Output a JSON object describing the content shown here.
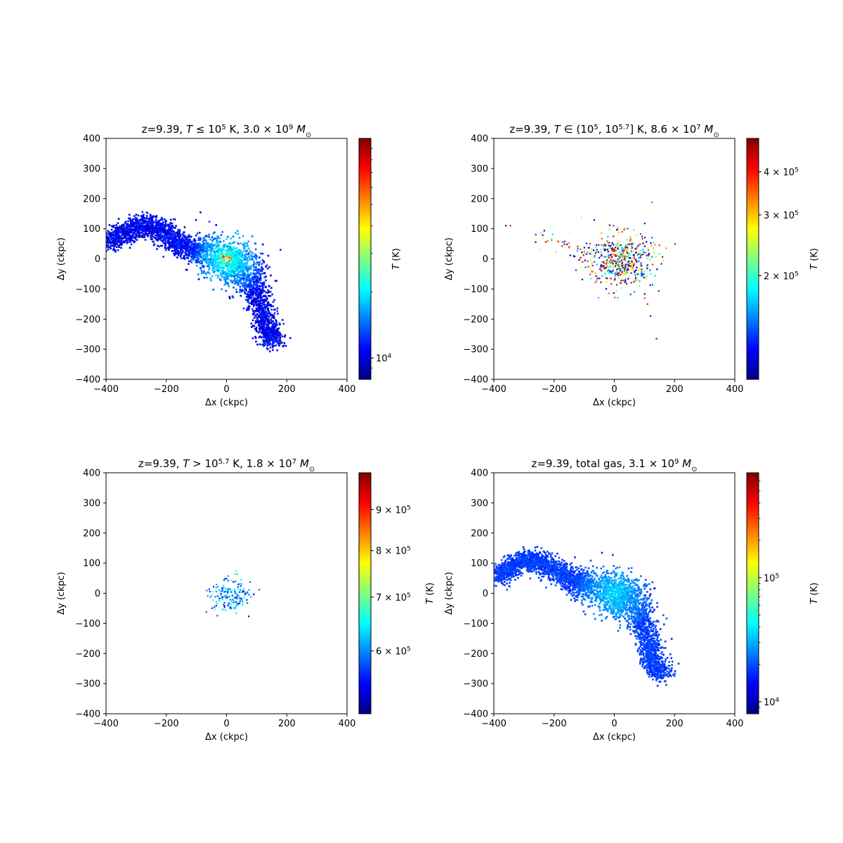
{
  "colormap": "jet",
  "colormap_stops": [
    "#00007f",
    "#0000ff",
    "#007fff",
    "#00ffff",
    "#7fff7f",
    "#ffff00",
    "#ff7f00",
    "#ff0000",
    "#7f0000"
  ],
  "chart_data": [
    {
      "type": "heatmap",
      "title_parts": [
        "z=9.39, ",
        "T",
        " ≤ 10",
        "5",
        " K, 3.0 × 10",
        "9",
        " M",
        "⊙"
      ],
      "xlabel": "Δx (ckpc)",
      "ylabel": "Δy (ckpc)",
      "xlim": [
        -400,
        400
      ],
      "ylim": [
        -400,
        400
      ],
      "xticks": [
        -400,
        -200,
        0,
        200,
        400
      ],
      "yticks": [
        400,
        300,
        200,
        100,
        0,
        -100,
        -200,
        -300,
        -400
      ],
      "colorbar": {
        "label": "T (K)",
        "scale": "log",
        "range": [
          8000,
          100000
        ],
        "ticks": [
          {
            "value": 10000,
            "base": "10",
            "exp": "4",
            "mantissa": ""
          }
        ]
      },
      "morphology": "filament",
      "temp_range": [
        0.05,
        0.45
      ],
      "point_density": 1.0
    },
    {
      "type": "heatmap",
      "title_parts": [
        "z=9.39, ",
        "T",
        " ∈ (10",
        "5",
        ", 10",
        "5.7",
        "] K, 8.6 × 10",
        "7",
        " M",
        "⊙"
      ],
      "xlabel": "Δx (ckpc)",
      "ylabel": "Δy (ckpc)",
      "xlim": [
        -400,
        400
      ],
      "ylim": [
        -400,
        400
      ],
      "xticks": [
        -400,
        -200,
        0,
        200,
        400
      ],
      "yticks": [
        400,
        300,
        200,
        100,
        0,
        -100,
        -200,
        -300,
        -400
      ],
      "colorbar": {
        "label": "T (K)",
        "scale": "log",
        "range": [
          100000,
          500000
        ],
        "ticks": [
          {
            "value": 200000,
            "mantissa": "2 × ",
            "base": "10",
            "exp": "5"
          },
          {
            "value": 300000,
            "mantissa": "3 × ",
            "base": "10",
            "exp": "5"
          },
          {
            "value": 400000,
            "mantissa": "4 × ",
            "base": "10",
            "exp": "5"
          }
        ]
      },
      "morphology": "sparse",
      "temp_range": [
        0.0,
        1.0
      ],
      "point_density": 1.0
    },
    {
      "type": "heatmap",
      "title_parts": [
        "z=9.39, ",
        "T",
        " > 10",
        "5.7",
        " K, 1.8 × 10",
        "7",
        " M",
        "⊙"
      ],
      "xlabel": "Δx (ckpc)",
      "ylabel": "Δy (ckpc)",
      "xlim": [
        -400,
        400
      ],
      "ylim": [
        -400,
        400
      ],
      "xticks": [
        -400,
        -200,
        0,
        200,
        400
      ],
      "yticks": [
        400,
        300,
        200,
        100,
        0,
        -100,
        -200,
        -300,
        -400
      ],
      "colorbar": {
        "label": "T (K)",
        "scale": "log",
        "range": [
          501000,
          1000000
        ],
        "ticks": [
          {
            "value": 600000,
            "mantissa": "6 × ",
            "base": "10",
            "exp": "5"
          },
          {
            "value": 700000,
            "mantissa": "7 × ",
            "base": "10",
            "exp": "5"
          },
          {
            "value": 800000,
            "mantissa": "8 × ",
            "base": "10",
            "exp": "5"
          },
          {
            "value": 900000,
            "mantissa": "9 × ",
            "base": "10",
            "exp": "5"
          }
        ]
      },
      "morphology": "core",
      "temp_range": [
        0.1,
        0.45
      ],
      "point_density": 1.0
    },
    {
      "type": "heatmap",
      "title_parts": [
        "z=9.39, total gas, 3.1 × 10",
        "9",
        " M",
        "⊙"
      ],
      "xlabel": "Δx (ckpc)",
      "ylabel": "Δy (ckpc)",
      "xlim": [
        -400,
        400
      ],
      "ylim": [
        -400,
        400
      ],
      "xticks": [
        -400,
        -200,
        0,
        200,
        400
      ],
      "yticks": [
        400,
        300,
        200,
        100,
        0,
        -100,
        -200,
        -300,
        -400
      ],
      "colorbar": {
        "label": "T (K)",
        "scale": "log",
        "range": [
          8000,
          700000
        ],
        "ticks": [
          {
            "value": 10000,
            "mantissa": "",
            "base": "10",
            "exp": "4"
          },
          {
            "value": 100000,
            "mantissa": "",
            "base": "10",
            "exp": "5"
          }
        ]
      },
      "morphology": "filament",
      "temp_range": [
        0.15,
        0.35
      ],
      "point_density": 1.0
    }
  ]
}
